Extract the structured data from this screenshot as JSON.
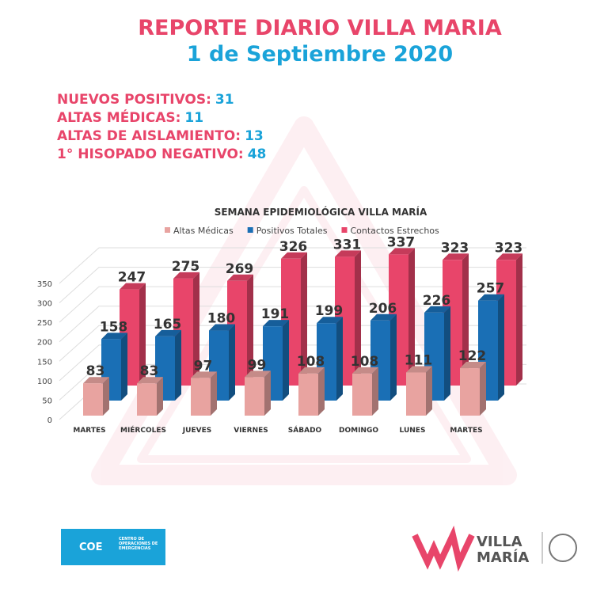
{
  "header": {
    "title": "REPORTE DIARIO VILLA MARIA",
    "date": "1 de Septiembre 2020"
  },
  "stats": [
    {
      "label": "NUEVOS POSITIVOS:",
      "value": 31
    },
    {
      "label": "ALTAS MÉDICAS:",
      "value": 11
    },
    {
      "label": "ALTAS DE AISLAMIENTO:",
      "value": 13
    },
    {
      "label": "1° HISOPADO NEGATIVO:",
      "value": 48
    }
  ],
  "chart_data": {
    "type": "bar3d",
    "title": "SEMANA EPIDEMIOLÓGICA VILLA MARÍA",
    "categories": [
      "MARTES",
      "MIÉRCOLES",
      "JUEVES",
      "VIERNES",
      "SÁBADO",
      "DOMINGO",
      "LUNES",
      "MARTES"
    ],
    "series": [
      {
        "name": "Altas Médicas",
        "color": "#e8a3a0",
        "values": [
          83,
          83,
          97,
          99,
          108,
          108,
          111,
          122
        ]
      },
      {
        "name": "Positivos Totales",
        "color": "#1a6fb5",
        "values": [
          158,
          165,
          180,
          191,
          199,
          206,
          226,
          257
        ]
      },
      {
        "name": "Contactos Estrechos",
        "color": "#e8456a",
        "values": [
          247,
          275,
          269,
          326,
          331,
          337,
          323,
          323
        ]
      }
    ],
    "ylim": [
      0,
      350
    ],
    "yticks": [
      0,
      50,
      100,
      150,
      200,
      250,
      300,
      350
    ],
    "grid": true,
    "legend": "top"
  },
  "logos": {
    "coe": "COE",
    "coe_name": "CENTRO DE OPERACIONES DE EMERGENCIAS",
    "city_1": "VILLA",
    "city_2": "MARÍA"
  }
}
